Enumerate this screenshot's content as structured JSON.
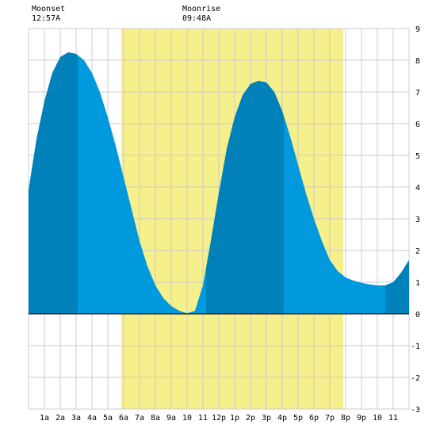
{
  "moon": {
    "moonset_label": "Moonset",
    "moonset_time": "12:57A",
    "moonrise_label": "Moonrise",
    "moonrise_time": "09:48A"
  },
  "colors": {
    "daylight": "#f5ef8c",
    "tide_light": "#0099dd",
    "tide_dark": "#0081b9",
    "grid": "#cccccc",
    "background": "#ffffff"
  },
  "chart_data": {
    "type": "area",
    "title": "",
    "xlabel": "",
    "ylabel": "",
    "xlim": [
      0,
      24
    ],
    "ylim": [
      -3,
      9
    ],
    "x_tick_labels": [
      "1a",
      "2a",
      "3a",
      "4a",
      "5a",
      "6a",
      "7a",
      "8a",
      "9a",
      "10",
      "11",
      "12p",
      "1p",
      "2p",
      "3p",
      "4p",
      "5p",
      "6p",
      "7p",
      "8p",
      "9p",
      "10",
      "11"
    ],
    "y_tick_labels": [
      "-3",
      "-2",
      "-1",
      "0",
      "1",
      "2",
      "3",
      "4",
      "5",
      "6",
      "7",
      "8",
      "9"
    ],
    "grid": true,
    "daylight_hours": [
      5.85,
      19.85
    ],
    "dark_shade_intervals": [
      [
        0,
        3.1
      ],
      [
        11.2,
        16.1
      ],
      [
        22.5,
        24
      ]
    ],
    "series": [
      {
        "x": [
          0,
          0.5,
          1,
          1.5,
          2,
          2.5,
          3,
          3.5,
          4,
          4.5,
          5,
          5.5,
          6,
          6.5,
          7,
          7.5,
          8,
          8.5,
          9,
          9.5,
          10,
          10.5,
          11,
          11.5,
          12,
          12.5,
          13,
          13.5,
          14,
          14.5,
          15,
          15.5,
          16,
          16.5,
          17,
          17.5,
          18,
          18.5,
          19,
          19.5,
          20,
          20.5,
          21,
          21.5,
          22,
          22.5,
          23,
          23.5,
          24
        ],
        "values": [
          3.9,
          5.5,
          6.7,
          7.6,
          8.1,
          8.25,
          8.2,
          8.0,
          7.6,
          7.0,
          6.2,
          5.3,
          4.3,
          3.3,
          2.3,
          1.5,
          0.9,
          0.5,
          0.25,
          0.1,
          0.02,
          0.1,
          0.9,
          2.3,
          3.8,
          5.2,
          6.2,
          6.9,
          7.25,
          7.35,
          7.3,
          7.0,
          6.4,
          5.6,
          4.7,
          3.8,
          3.0,
          2.3,
          1.7,
          1.35,
          1.15,
          1.05,
          0.98,
          0.93,
          0.9,
          0.9,
          1.0,
          1.3,
          1.7
        ]
      }
    ]
  }
}
